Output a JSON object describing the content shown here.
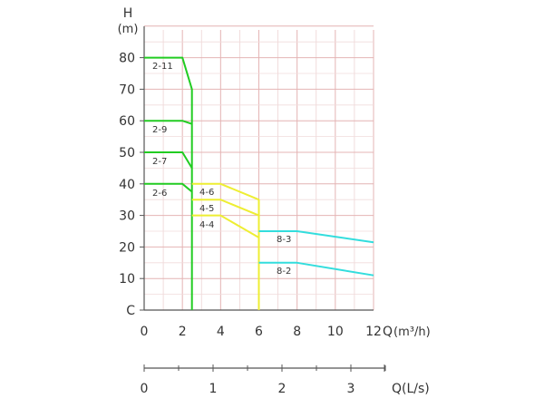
{
  "chart_data": {
    "type": "line",
    "ylabel": "H",
    "yunit": "(m)",
    "xlabel": "Q",
    "xunit": "(m³/h)",
    "xlim": [
      0,
      12
    ],
    "ylim": [
      0,
      90
    ],
    "x_ticks": [
      0,
      2,
      4,
      6,
      8,
      10,
      12
    ],
    "y_ticks": [
      0,
      10,
      20,
      30,
      40,
      50,
      60,
      70,
      80
    ],
    "y_tick_labels": [
      "C",
      "10",
      "20",
      "30",
      "40",
      "50",
      "60",
      "70",
      "80"
    ],
    "grid": true,
    "secondary_x_axis": {
      "label": "Q(L/s)",
      "ticks": [
        0,
        1,
        2,
        3
      ],
      "minor_ticks": [
        0.5,
        1.5,
        2.5,
        3.5
      ]
    },
    "series": [
      {
        "name": "2-11",
        "color": "#22cc22",
        "points": [
          [
            0,
            80
          ],
          [
            2,
            80
          ],
          [
            2.5,
            70
          ],
          [
            2.5,
            0
          ]
        ]
      },
      {
        "name": "2-9",
        "color": "#22cc22",
        "points": [
          [
            0,
            60
          ],
          [
            2,
            60
          ],
          [
            2.5,
            59
          ]
        ]
      },
      {
        "name": "2-7",
        "color": "#22cc22",
        "points": [
          [
            0,
            50
          ],
          [
            2,
            50
          ],
          [
            2.5,
            45
          ]
        ]
      },
      {
        "name": "2-6",
        "color": "#22cc22",
        "points": [
          [
            0,
            40
          ],
          [
            2,
            40
          ],
          [
            2.5,
            37.5
          ]
        ]
      },
      {
        "name": "4-6",
        "color": "#eeee33",
        "points": [
          [
            2.5,
            40
          ],
          [
            4,
            40
          ],
          [
            6,
            35
          ],
          [
            6,
            0
          ]
        ]
      },
      {
        "name": "4-5",
        "color": "#eeee33",
        "points": [
          [
            2.5,
            35
          ],
          [
            4,
            35
          ],
          [
            6,
            30
          ]
        ]
      },
      {
        "name": "4-4",
        "color": "#eeee33",
        "points": [
          [
            2.5,
            30
          ],
          [
            4,
            30
          ],
          [
            6,
            23
          ]
        ]
      },
      {
        "name": "8-3",
        "color": "#33dddd",
        "points": [
          [
            6,
            25
          ],
          [
            8,
            25
          ],
          [
            12,
            21.5
          ]
        ]
      },
      {
        "name": "8-2",
        "color": "#33dddd",
        "points": [
          [
            6,
            15
          ],
          [
            8,
            15
          ],
          [
            12,
            11
          ]
        ]
      }
    ]
  }
}
